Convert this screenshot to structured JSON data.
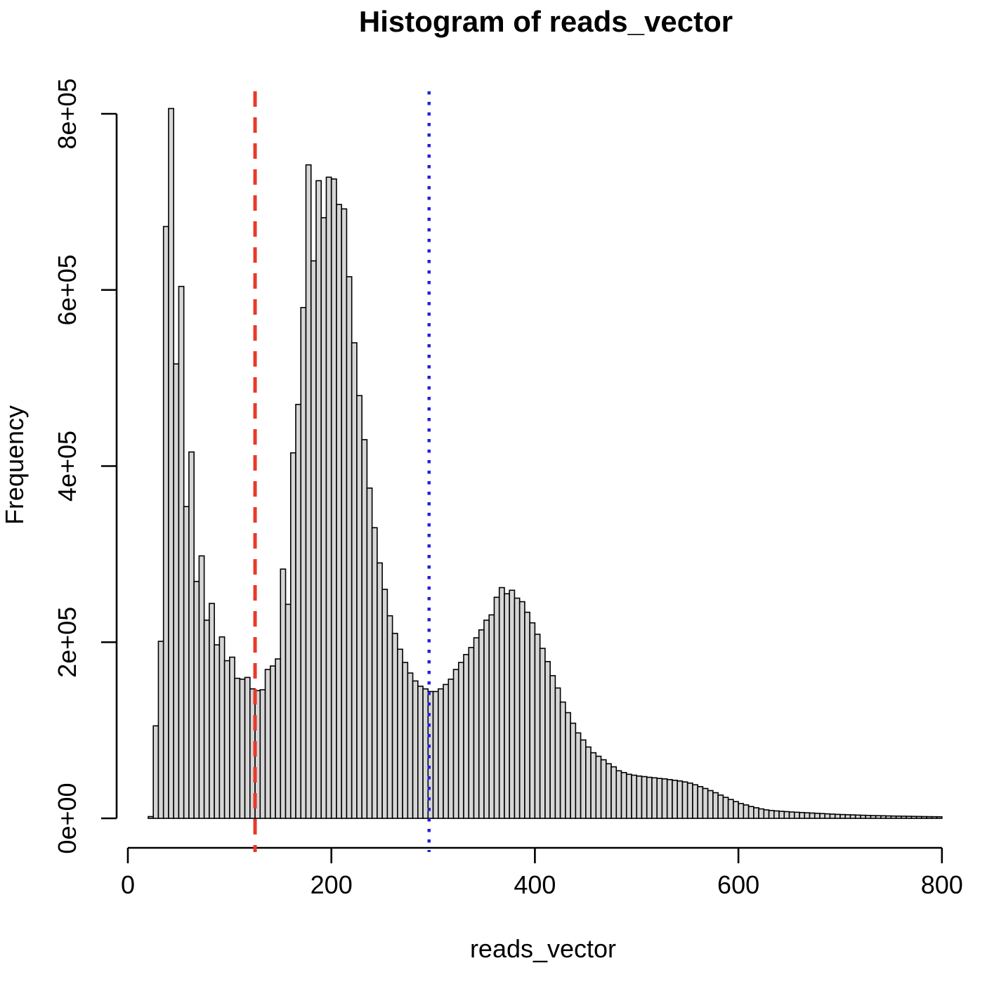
{
  "title": "Histogram of reads_vector",
  "x_axis": {
    "label": "reads_vector",
    "tick_labels": [
      "0",
      "200",
      "400",
      "600",
      "800"
    ]
  },
  "y_axis": {
    "label": "Frequency",
    "tick_labels": [
      "0e+00",
      "2e+05",
      "4e+05",
      "6e+05",
      "8e+05"
    ]
  },
  "chart_data": {
    "type": "bar",
    "subtype": "histogram",
    "title": "Histogram of reads_vector",
    "xlabel": "reads_vector",
    "ylabel": "Frequency",
    "xlim": [
      0,
      800
    ],
    "ylim": [
      0,
      800000
    ],
    "x_ticks": [
      0,
      200,
      400,
      600,
      800
    ],
    "y_ticks": [
      0,
      200000,
      400000,
      600000,
      800000
    ],
    "y_tick_labels": [
      "0e+00",
      "2e+05",
      "4e+05",
      "6e+05",
      "8e+05"
    ],
    "grid": false,
    "legend": false,
    "bar_fill": "#D6D6D6",
    "bar_border": "#000000",
    "bin_start": 20,
    "bin_width": 5,
    "counts": [
      2000,
      105000,
      201000,
      672000,
      806000,
      516000,
      604000,
      354000,
      416000,
      269000,
      298000,
      225000,
      244000,
      197000,
      206000,
      179000,
      183000,
      159000,
      158000,
      160000,
      147000,
      145000,
      146000,
      169000,
      173000,
      181000,
      283000,
      243000,
      415000,
      470000,
      580000,
      742000,
      633000,
      724000,
      682000,
      728000,
      726000,
      697000,
      692000,
      615000,
      540000,
      480000,
      430000,
      375000,
      330000,
      290000,
      260000,
      230000,
      210000,
      192000,
      177000,
      165000,
      156000,
      150000,
      147000,
      144000,
      144000,
      147000,
      152000,
      158000,
      169000,
      177000,
      186000,
      194000,
      205000,
      214000,
      225000,
      231000,
      251000,
      262000,
      255000,
      259000,
      250000,
      246000,
      234000,
      222000,
      209000,
      193000,
      178000,
      162000,
      148000,
      132000,
      120000,
      108000,
      97000,
      89000,
      81000,
      74500,
      70500,
      66500,
      62000,
      58500,
      54000,
      52000,
      50000,
      49000,
      48000,
      47400,
      46600,
      46000,
      45300,
      44800,
      44000,
      43200,
      42400,
      41300,
      40000,
      38100,
      36000,
      33900,
      31500,
      29100,
      26400,
      23800,
      21400,
      19000,
      16800,
      15200,
      13400,
      12000,
      10700,
      9600,
      8900,
      8400,
      8000,
      7600,
      7200,
      6900,
      6600,
      6300,
      6000,
      5700,
      5400,
      5100,
      4800,
      4500,
      4300,
      4100,
      3900,
      3700,
      3500,
      3300,
      3100,
      3000,
      2900,
      2750,
      2600,
      2500,
      2400,
      2300,
      2200,
      2100,
      2000,
      1900,
      1850,
      1800
    ],
    "vlines": [
      {
        "x": 125,
        "style": "dashed",
        "color": "#E8392B",
        "name": "red-dashed-line"
      },
      {
        "x": 296,
        "style": "dotted",
        "color": "#2222DD",
        "name": "blue-dotted-line"
      }
    ]
  }
}
